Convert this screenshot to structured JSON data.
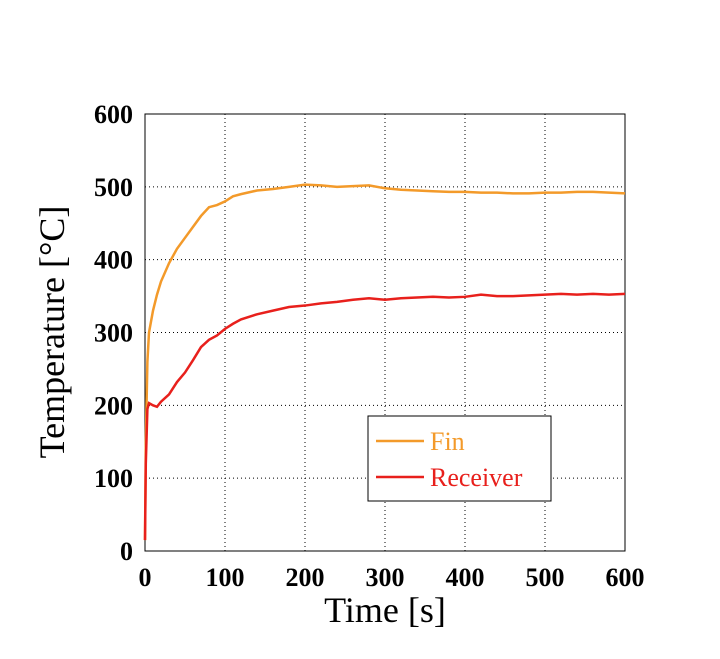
{
  "chart_data": {
    "type": "line",
    "x_label": "Time  [s]",
    "y_label": "Temperature  [°C]",
    "x": [
      0,
      1,
      3,
      5,
      10,
      15,
      20,
      30,
      40,
      50,
      60,
      70,
      80,
      90,
      100,
      110,
      120,
      140,
      160,
      180,
      200,
      220,
      240,
      260,
      280,
      300,
      320,
      340,
      360,
      380,
      400,
      420,
      440,
      460,
      480,
      500,
      520,
      540,
      560,
      580,
      600
    ],
    "series": [
      {
        "name": "Fin",
        "color": "#f39a2a",
        "values": [
          15,
          150,
          260,
          300,
          330,
          352,
          370,
          395,
          415,
          430,
          445,
          460,
          472,
          475,
          480,
          487,
          490,
          495,
          497,
          500,
          503,
          502,
          500,
          501,
          502,
          498,
          496,
          495,
          494,
          493,
          493,
          492,
          492,
          491,
          491,
          492,
          492,
          493,
          493,
          492,
          491
        ]
      },
      {
        "name": "Receiver",
        "color": "#e8201c",
        "values": [
          15,
          120,
          195,
          203,
          200,
          198,
          205,
          215,
          232,
          245,
          262,
          280,
          290,
          296,
          305,
          312,
          318,
          325,
          330,
          335,
          337,
          340,
          342,
          345,
          347,
          345,
          347,
          348,
          349,
          348,
          349,
          352,
          350,
          350,
          351,
          352,
          353,
          352,
          353,
          352,
          353
        ]
      }
    ],
    "xlim": [
      0,
      600
    ],
    "xticks": [
      0,
      100,
      200,
      300,
      400,
      500,
      600
    ],
    "ylim": [
      0,
      600
    ],
    "yticks": [
      0,
      100,
      200,
      300,
      400,
      500,
      600
    ],
    "grid": true
  }
}
